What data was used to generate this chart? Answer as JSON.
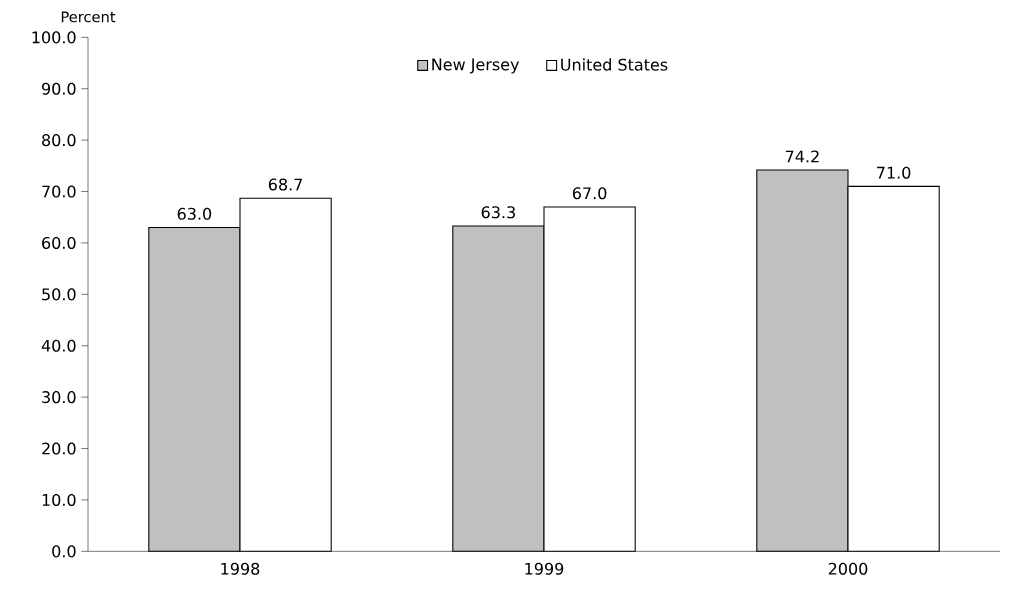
{
  "chart_data": {
    "type": "bar",
    "ylabel": "Percent",
    "categories": [
      "1998",
      "1999",
      "2000"
    ],
    "series": [
      {
        "name": "New Jersey",
        "color": "#c0c0c0",
        "values": [
          63.0,
          63.3,
          74.2
        ],
        "value_labels": [
          "63.0",
          "63.3",
          "74.2"
        ]
      },
      {
        "name": "United States",
        "color": "#ffffff",
        "values": [
          68.7,
          67.0,
          71.0
        ],
        "value_labels": [
          "68.7",
          "67.0",
          "71.0"
        ]
      }
    ],
    "ylim": [
      0,
      100
    ],
    "yticks": [
      {
        "value": 0,
        "label": "0.0"
      },
      {
        "value": 10,
        "label": "10.0"
      },
      {
        "value": 20,
        "label": "20.0"
      },
      {
        "value": 30,
        "label": "30.0"
      },
      {
        "value": 40,
        "label": "40.0"
      },
      {
        "value": 50,
        "label": "50.0"
      },
      {
        "value": 60,
        "label": "60.0"
      },
      {
        "value": 70,
        "label": "70.0"
      },
      {
        "value": 80,
        "label": "80.0"
      },
      {
        "value": 90,
        "label": "90.0"
      },
      {
        "value": 100,
        "label": "100.0"
      }
    ],
    "grid": false,
    "legend": "top"
  }
}
